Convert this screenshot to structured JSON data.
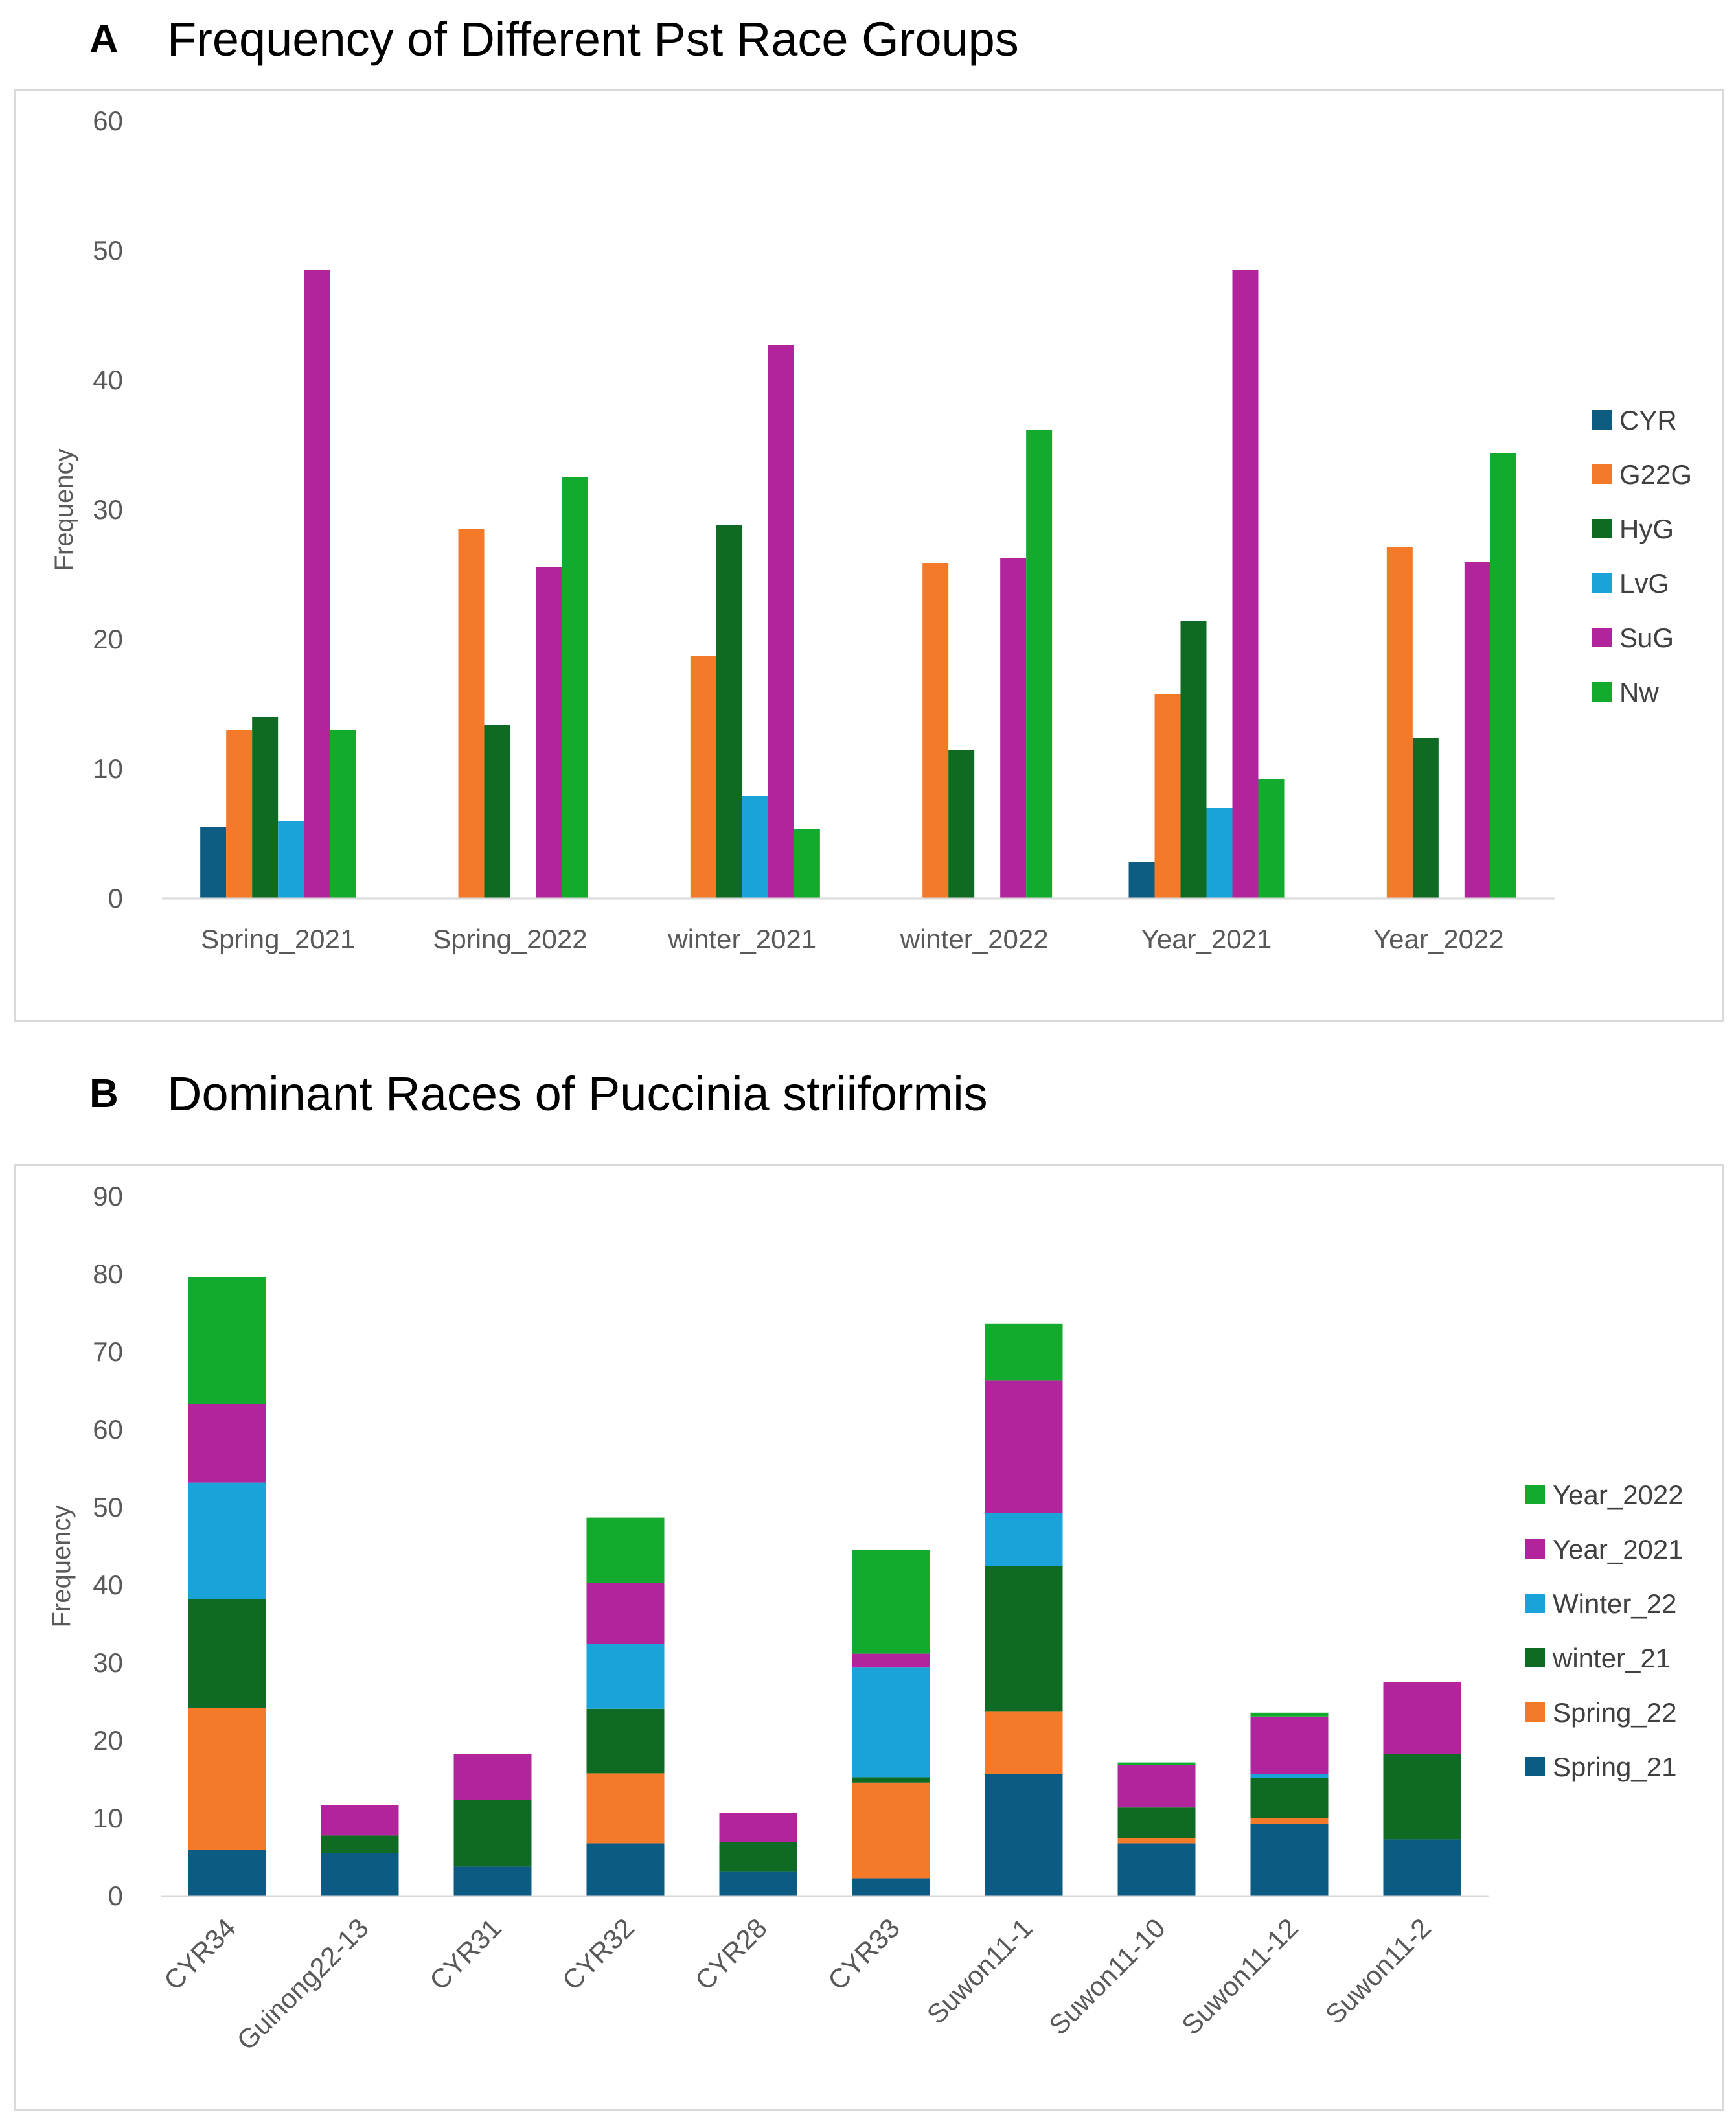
{
  "panels": {
    "a": {
      "letter": "A",
      "title": "Frequency of Different Pst Race Groups"
    },
    "b": {
      "letter": "B",
      "title": "Dominant Races of Puccinia striiformis"
    }
  },
  "chart_data": [
    {
      "type": "bar",
      "title": "Frequency of Different Pst Race Groups",
      "xlabel": "",
      "ylabel": "Frequency",
      "ylim": [
        0,
        60
      ],
      "yticks": [
        0,
        10,
        20,
        30,
        40,
        50,
        60
      ],
      "grid": false,
      "legend_position": "right",
      "categories": [
        "Spring_2021",
        "Spring_2022",
        "winter_2021",
        "winter_2022",
        "Year_2021",
        "Year_2022"
      ],
      "series": [
        {
          "name": "CYR",
          "color": "#0e5c82",
          "values": [
            5.5,
            0,
            0,
            0,
            2.8,
            0
          ]
        },
        {
          "name": "G22G",
          "color": "#f47a2a",
          "values": [
            13,
            28.5,
            18.7,
            25.9,
            15.8,
            27.1
          ]
        },
        {
          "name": "HyG",
          "color": "#0f6b23",
          "values": [
            14,
            13.4,
            28.8,
            11.5,
            21.4,
            12.4
          ]
        },
        {
          "name": "LvG",
          "color": "#1aa3d9",
          "values": [
            6,
            0,
            7.9,
            0,
            7,
            0
          ]
        },
        {
          "name": "SuG",
          "color": "#b2249b",
          "values": [
            48.5,
            25.6,
            42.7,
            26.3,
            48.5,
            26
          ]
        },
        {
          "name": "Nw",
          "color": "#12ab2e",
          "values": [
            13,
            32.5,
            5.4,
            36.2,
            9.2,
            34.4
          ]
        }
      ]
    },
    {
      "type": "bar",
      "stacked": true,
      "title": "Dominant Races of Puccinia striiformis",
      "xlabel": "",
      "ylabel": "Frequency",
      "ylim": [
        0,
        90
      ],
      "yticks": [
        0,
        10,
        20,
        30,
        40,
        50,
        60,
        70,
        80,
        90
      ],
      "grid": false,
      "legend_position": "right",
      "categories": [
        "CYR34",
        "Guinong22-13",
        "CYR31",
        "CYR32",
        "CYR28",
        "CYR33",
        "Suwon11-1",
        "Suwon11-10",
        "Suwon11-12",
        "Suwon11-2"
      ],
      "series": [
        {
          "name": "Spring_21",
          "color": "#0b5b83",
          "values": [
            6,
            5.5,
            3.8,
            6.8,
            3.2,
            2.3,
            15.7,
            6.8,
            9.3,
            7.3
          ]
        },
        {
          "name": "Spring_22",
          "color": "#f47a2a",
          "values": [
            18.2,
            0,
            0,
            9,
            0,
            12.3,
            8.1,
            0.7,
            0.7,
            0
          ]
        },
        {
          "name": "winter_21",
          "color": "#0f6b23",
          "values": [
            14,
            2.3,
            8.6,
            8.3,
            3.8,
            0.7,
            18.7,
            3.9,
            5.2,
            11
          ]
        },
        {
          "name": "Winter_22",
          "color": "#1aa3d9",
          "values": [
            15,
            0,
            0,
            8.4,
            0,
            14.1,
            6.8,
            0,
            0.5,
            0
          ]
        },
        {
          "name": "Year_2021",
          "color": "#b2249b",
          "values": [
            10.1,
            3.9,
            5.9,
            7.8,
            3.7,
            1.8,
            17,
            5.5,
            7.4,
            9.2
          ]
        },
        {
          "name": "Year_2022",
          "color": "#12ab2e",
          "values": [
            16.3,
            0,
            0,
            8.4,
            0,
            13.3,
            7.3,
            0.3,
            0.5,
            0
          ]
        }
      ]
    }
  ]
}
